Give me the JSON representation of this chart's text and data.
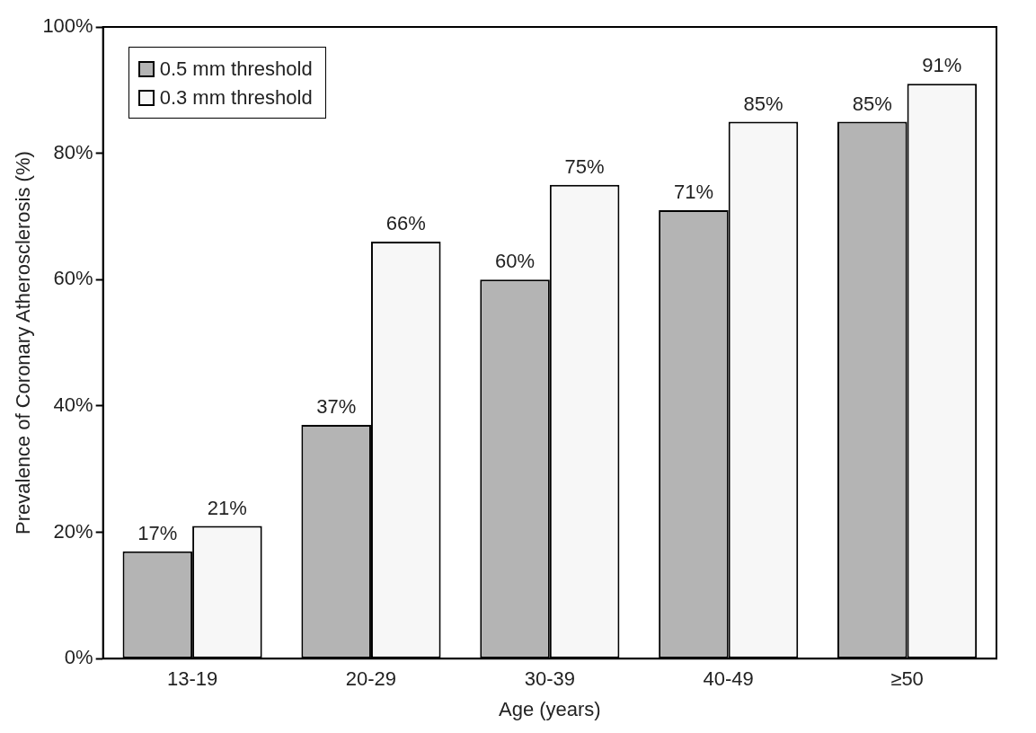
{
  "chart_data": {
    "type": "bar",
    "xlabel": "Age (years)",
    "ylabel": "Prevalence of Coronary Atherosclerosis (%)",
    "categories": [
      "13-19",
      "20-29",
      "30-39",
      "40-49",
      "≥50"
    ],
    "series": [
      {
        "name": "0.5 mm threshold",
        "color": "#b4b4b4",
        "values": [
          17,
          37,
          60,
          71,
          85
        ],
        "value_labels": [
          "17%",
          "37%",
          "60%",
          "71%",
          "85%"
        ]
      },
      {
        "name": "0.3 mm threshold",
        "color": "#f7f7f7",
        "values": [
          21,
          66,
          75,
          85,
          91
        ],
        "value_labels": [
          "21%",
          "66%",
          "75%",
          "85%",
          "91%"
        ]
      }
    ],
    "ylim": [
      0,
      100
    ],
    "yticks": [
      {
        "value": 0,
        "label": "0%"
      },
      {
        "value": 20,
        "label": "20%"
      },
      {
        "value": 40,
        "label": "40%"
      },
      {
        "value": 60,
        "label": "60%"
      },
      {
        "value": 80,
        "label": "80%"
      },
      {
        "value": 100,
        "label": "100%"
      }
    ],
    "grid": false,
    "legend": "top left"
  }
}
